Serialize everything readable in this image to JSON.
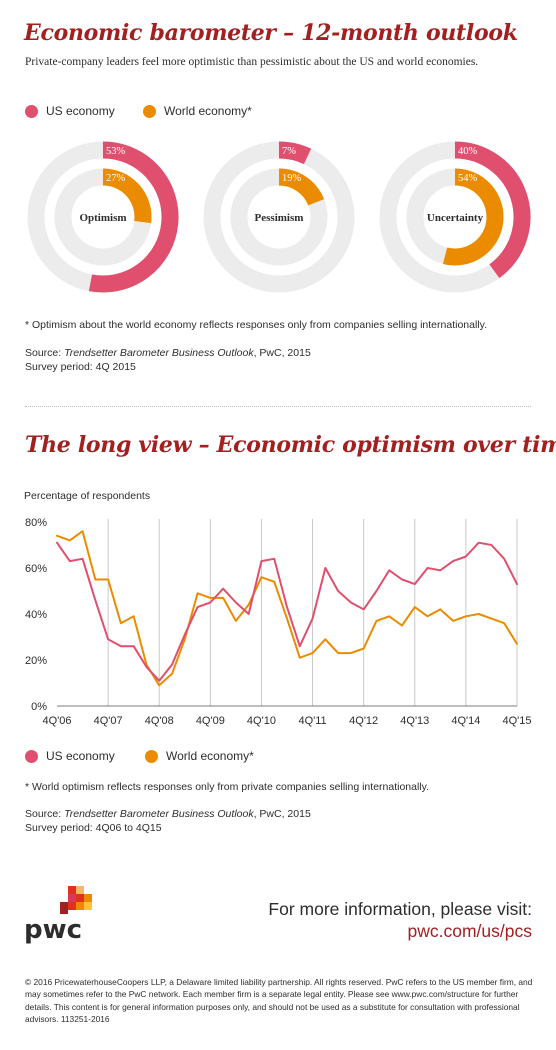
{
  "section1": {
    "title": "Economic barometer – 12-month outlook",
    "subtitle": "Private-company leaders feel more optimistic than pessimistic about the US and world economies.",
    "legend": [
      {
        "label": "US economy",
        "color": "#e0506e"
      },
      {
        "label": "World economy*",
        "color": "#eb8c00"
      }
    ],
    "footnote": "* Optimism about the world economy reflects responses only from companies selling internationally.",
    "source_label": "Source: ",
    "source_title": "Trendsetter Barometer Business Outlook",
    "source_rest": ", PwC, 2015",
    "survey_period": "Survey period: 4Q 2015"
  },
  "section2": {
    "title": "The long view – Economic optimism over time",
    "legend": [
      {
        "label": "US economy",
        "color": "#e0506e"
      },
      {
        "label": "World economy*",
        "color": "#eb8c00"
      }
    ],
    "footnote": "* World optimism reflects responses only from private companies selling internationally.",
    "source_label": "Source: ",
    "source_title": "Trendsetter Barometer Business Outlook",
    "source_rest": ", PwC, 2015",
    "survey_period": "Survey period: 4Q06 to 4Q15"
  },
  "chart_data": [
    {
      "type": "pie",
      "variant": "nested-donuts",
      "track_color": "#ececec",
      "donuts": [
        {
          "name": "Optimism",
          "us": 53,
          "world": 27,
          "us_label": "53%",
          "world_label": "27%"
        },
        {
          "name": "Pessimism",
          "us": 7,
          "world": 19,
          "us_label": "7%",
          "world_label": "19%"
        },
        {
          "name": "Uncertainty",
          "us": 40,
          "world": 54,
          "us_label": "40%",
          "world_label": "54%"
        }
      ],
      "series_colors": {
        "us": "#e0506e",
        "world": "#eb8c00"
      }
    },
    {
      "type": "line",
      "title": "",
      "ylabel": "Percentage of respondents",
      "ylim": [
        0,
        80
      ],
      "yticks": [
        0,
        20,
        40,
        60,
        80
      ],
      "ytick_labels": [
        "0%",
        "20%",
        "40%",
        "60%",
        "80%"
      ],
      "x_range": [
        0,
        36
      ],
      "x_ticks": [
        0,
        4,
        8,
        12,
        16,
        20,
        24,
        28,
        32,
        36
      ],
      "x_tick_labels": [
        "4Q'06",
        "4Q'07",
        "4Q'08",
        "4Q'09",
        "4Q'10",
        "4Q'11",
        "4Q'12",
        "4Q'13",
        "4Q'14",
        "4Q'15"
      ],
      "grid": "vertical",
      "series": [
        {
          "name": "US economy",
          "color": "#e0506e",
          "values": [
            71,
            63,
            64,
            46,
            29,
            26,
            26,
            17,
            11,
            18,
            31,
            43,
            45,
            51,
            45,
            40,
            63,
            64,
            43,
            26,
            38,
            60,
            50,
            45,
            42,
            50,
            59,
            55,
            53,
            60,
            59,
            63,
            65,
            71,
            70,
            64,
            53
          ]
        },
        {
          "name": "World economy*",
          "color": "#eb8c00",
          "values": [
            74,
            72,
            76,
            55,
            55,
            36,
            39,
            18,
            9,
            14,
            29,
            49,
            47,
            47,
            37,
            44,
            56,
            54,
            38,
            21,
            23,
            29,
            23,
            23,
            25,
            37,
            39,
            35,
            43,
            39,
            42,
            37,
            39,
            40,
            38,
            36,
            27
          ]
        }
      ]
    }
  ],
  "footer": {
    "logo_text": "pwc",
    "visit_text": "For more information, please visit:",
    "url": "pwc.com/us/pcs",
    "legal": "© 2016 PricewaterhouseCoopers LLP, a Delaware limited liability partnership. All rights reserved. PwC refers to the US member firm, and may sometimes refer to the PwC network. Each member firm is a separate legal entity. Please see www.pwc.com/structure for further details. This content is for general information purposes only, and should not be used as a substitute for consultation with professional advisors. 113251-2016"
  }
}
